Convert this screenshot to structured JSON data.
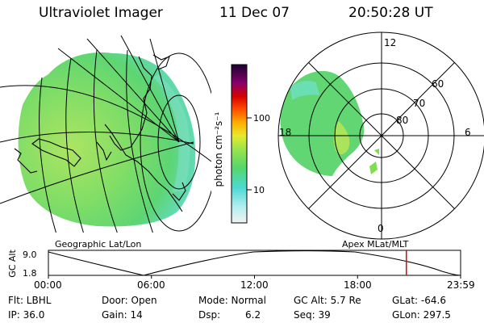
{
  "header": {
    "instrument": "Ultraviolet Imager",
    "date": "11 Dec 07",
    "time": "20:50:28 UT"
  },
  "panels": {
    "left_caption": "Geographic Lat/Lon",
    "right_caption": "Apex MLat/MLT"
  },
  "colorbar": {
    "unit_label": "photon cm⁻²s⁻¹",
    "ticks": [
      "100",
      "10"
    ]
  },
  "polar": {
    "mlt_labels": {
      "top": "12",
      "left": "18",
      "right": "6",
      "bottom": "0"
    },
    "lat_labels": [
      "60",
      "70",
      "80"
    ]
  },
  "altitude_plot": {
    "ylabel": "GC Alt",
    "y_ticks": [
      "9.0",
      "1.8"
    ],
    "x_ticks": [
      "00:00",
      "06:00",
      "12:00",
      "18:00",
      "23:59"
    ],
    "current_time_hours": 20.84,
    "marker_color": "#e00000"
  },
  "status": {
    "flt": "Flt: LBHL",
    "ip": "IP: 36.0",
    "door": "Door: Open",
    "gain": "Gain: 14",
    "mode": "Mode: Normal",
    "dsp_label": "Dsp:",
    "dsp_value": "6.2",
    "gcalt": "GC Alt: 5.7 Re",
    "seq": "Seq: 39",
    "glat": "GLat: -64.6",
    "glon": "GLon: 297.5"
  },
  "colors": {
    "image_green": "#56d36a",
    "image_yellow": "#a7e45b",
    "image_cyan": "#63dcc7"
  }
}
